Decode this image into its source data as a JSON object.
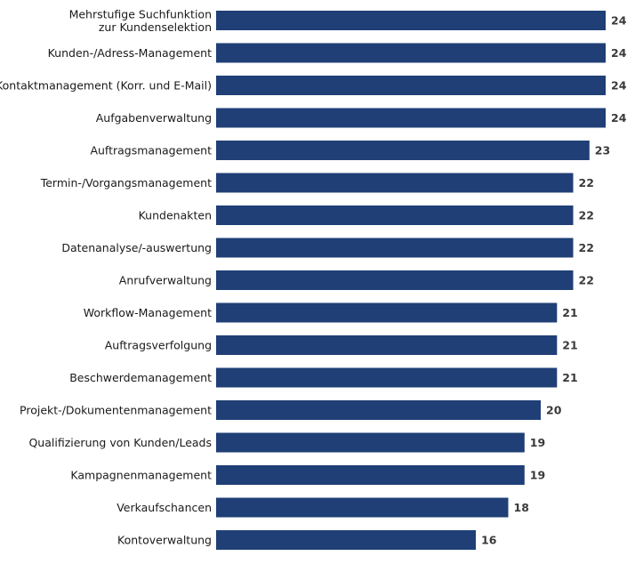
{
  "chart_data": {
    "type": "bar",
    "orientation": "horizontal",
    "title": "",
    "xlabel": "",
    "ylabel": "",
    "grid": false,
    "legend": "none",
    "xlim": [
      0,
      24
    ],
    "bar_color": "#1f3f76",
    "value_label_color": "#3a3a3a",
    "categories": [
      "Mehrstufige Suchfunktion zur Kundenselektion",
      "Kunden-/Adress-Management",
      "Kontaktmanagement (Korr. und E-Mail)",
      "Aufgabenverwaltung",
      "Auftragsmanagement",
      "Termin-/Vorgangsmanagement",
      "Kundenakten",
      "Datenanalyse/-auswertung",
      "Anrufverwaltung",
      "Workflow-Management",
      "Auftragsverfolgung",
      "Beschwerdemanagement",
      "Projekt-/Dokumentenmanagement",
      "Qualifizierung von Kunden/Leads",
      "Kampagnenmanagement",
      "Verkaufschancen",
      "Kontoverwaltung"
    ],
    "category_lines": [
      [
        "Mehrstufige Suchfunktion",
        "zur Kundenselektion"
      ],
      [
        "Kunden-/Adress-Management"
      ],
      [
        "Kontaktmanagement (Korr. und E-Mail)"
      ],
      [
        "Aufgabenverwaltung"
      ],
      [
        "Auftragsmanagement"
      ],
      [
        "Termin-/Vorgangsmanagement"
      ],
      [
        "Kundenakten"
      ],
      [
        "Datenanalyse/-auswertung"
      ],
      [
        "Anrufverwaltung"
      ],
      [
        "Workflow-Management"
      ],
      [
        "Auftragsverfolgung"
      ],
      [
        "Beschwerdemanagement"
      ],
      [
        "Projekt-/Dokumentenmanagement"
      ],
      [
        "Qualifizierung von Kunden/Leads"
      ],
      [
        "Kampagnenmanagement"
      ],
      [
        "Verkaufschancen"
      ],
      [
        "Kontoverwaltung"
      ]
    ],
    "values": [
      24,
      24,
      24,
      24,
      23,
      22,
      22,
      22,
      22,
      21,
      21,
      21,
      20,
      19,
      19,
      18,
      16
    ]
  }
}
